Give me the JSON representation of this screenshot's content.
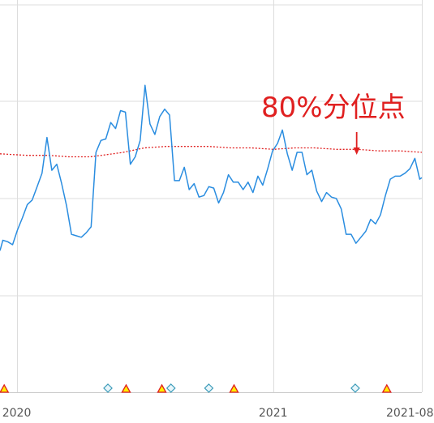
{
  "chart_data": {
    "type": "line",
    "title": "",
    "xlabel": "",
    "ylabel": "",
    "x_range": [
      "2019-12-08",
      "2021-08-01"
    ],
    "y_range": [
      -0.2,
      2.4
    ],
    "grid": true,
    "x_ticks": [
      {
        "date": "2020-01-01",
        "label": "2020"
      },
      {
        "date": "2021-01-01",
        "label": "2021"
      },
      {
        "date": "2021-08-01",
        "label": "2021-08"
      }
    ],
    "series": [
      {
        "color": "#2a8de0",
        "x": [
          "2019-12-08",
          "2019-12-12",
          "2019-12-19",
          "2019-12-26",
          "2020-01-02",
          "2020-01-09",
          "2020-01-16",
          "2020-01-23",
          "2020-01-30",
          "2020-02-06",
          "2020-02-13",
          "2020-02-20",
          "2020-02-27",
          "2020-03-05",
          "2020-03-12",
          "2020-03-19",
          "2020-03-26",
          "2020-04-02",
          "2020-04-09",
          "2020-04-16",
          "2020-04-23",
          "2020-04-30",
          "2020-05-07",
          "2020-05-14",
          "2020-05-21",
          "2020-05-28",
          "2020-06-04",
          "2020-06-11",
          "2020-06-18",
          "2020-06-25",
          "2020-07-02",
          "2020-07-09",
          "2020-07-16",
          "2020-07-23",
          "2020-07-30",
          "2020-08-06",
          "2020-08-13",
          "2020-08-20",
          "2020-08-27",
          "2020-09-03",
          "2020-09-10",
          "2020-09-17",
          "2020-09-24",
          "2020-10-01",
          "2020-10-08",
          "2020-10-15",
          "2020-10-22",
          "2020-10-29",
          "2020-11-05",
          "2020-11-12",
          "2020-11-19",
          "2020-11-26",
          "2020-12-03",
          "2020-12-10",
          "2020-12-17",
          "2020-12-24",
          "2020-12-31",
          "2021-01-07",
          "2021-01-14",
          "2021-01-21",
          "2021-01-28",
          "2021-02-04",
          "2021-02-11",
          "2021-02-18",
          "2021-02-25",
          "2021-03-04",
          "2021-03-11",
          "2021-03-18",
          "2021-03-25",
          "2021-04-01",
          "2021-04-08",
          "2021-04-15",
          "2021-04-22",
          "2021-04-29",
          "2021-05-06",
          "2021-05-13",
          "2021-05-20",
          "2021-05-27",
          "2021-06-03",
          "2021-06-10",
          "2021-06-17",
          "2021-06-24",
          "2021-07-01",
          "2021-07-08",
          "2021-07-15",
          "2021-07-22",
          "2021-07-29",
          "2021-08-01"
        ],
        "y": [
          0.75,
          0.82,
          0.81,
          0.79,
          0.89,
          0.97,
          1.06,
          1.09,
          1.18,
          1.27,
          1.51,
          1.29,
          1.33,
          1.2,
          1.05,
          0.86,
          0.85,
          0.84,
          0.87,
          0.91,
          1.41,
          1.49,
          1.5,
          1.61,
          1.57,
          1.69,
          1.68,
          1.33,
          1.38,
          1.49,
          1.86,
          1.6,
          1.53,
          1.65,
          1.7,
          1.66,
          1.22,
          1.22,
          1.31,
          1.16,
          1.2,
          1.11,
          1.12,
          1.18,
          1.17,
          1.07,
          1.14,
          1.26,
          1.21,
          1.21,
          1.16,
          1.21,
          1.14,
          1.25,
          1.19,
          1.3,
          1.42,
          1.47,
          1.56,
          1.4,
          1.29,
          1.41,
          1.41,
          1.26,
          1.29,
          1.15,
          1.08,
          1.14,
          1.11,
          1.1,
          1.03,
          0.86,
          0.86,
          0.8,
          0.84,
          0.88,
          0.96,
          0.93,
          0.99,
          1.12,
          1.23,
          1.25,
          1.25,
          1.27,
          1.3,
          1.37,
          1.23,
          1.24
        ]
      },
      {
        "color": "#e02020",
        "style": "dotted",
        "x": [
          "2019-12-08",
          "2020-01-15",
          "2020-02-15",
          "2020-03-15",
          "2020-04-15",
          "2020-05-01",
          "2020-06-01",
          "2020-07-01",
          "2020-08-01",
          "2020-09-01",
          "2020-10-01",
          "2020-11-01",
          "2020-12-01",
          "2021-01-01",
          "2021-02-01",
          "2021-03-01",
          "2021-04-01",
          "2021-05-01",
          "2021-06-01",
          "2021-07-01",
          "2021-08-01"
        ],
        "y": [
          1.4,
          1.39,
          1.39,
          1.38,
          1.38,
          1.39,
          1.41,
          1.44,
          1.45,
          1.45,
          1.45,
          1.44,
          1.44,
          1.43,
          1.44,
          1.44,
          1.43,
          1.43,
          1.42,
          1.42,
          1.41
        ]
      }
    ],
    "event_markers": [
      {
        "date": "2019-12-14",
        "shape": "triangle"
      },
      {
        "date": "2020-05-10",
        "shape": "diamond"
      },
      {
        "date": "2020-06-05",
        "shape": "triangle"
      },
      {
        "date": "2020-07-26",
        "shape": "triangle"
      },
      {
        "date": "2020-08-08",
        "shape": "diamond"
      },
      {
        "date": "2020-10-01",
        "shape": "diamond"
      },
      {
        "date": "2020-11-06",
        "shape": "triangle"
      },
      {
        "date": "2021-04-28",
        "shape": "diamond"
      },
      {
        "date": "2021-06-12",
        "shape": "triangle"
      }
    ],
    "annotations": [
      {
        "text": "80%分位点",
        "color": "#e02020",
        "arrow_date": "2021-04-30"
      }
    ],
    "colors": {
      "line": "#2a8de0",
      "percentile": "#e02020",
      "grid": "#dddddd",
      "triangle_fill": "#ffee00",
      "triangle_stroke": "#e02020",
      "diamond_fill": "#e8f6fb",
      "diamond_stroke": "#3a9ab8"
    }
  }
}
